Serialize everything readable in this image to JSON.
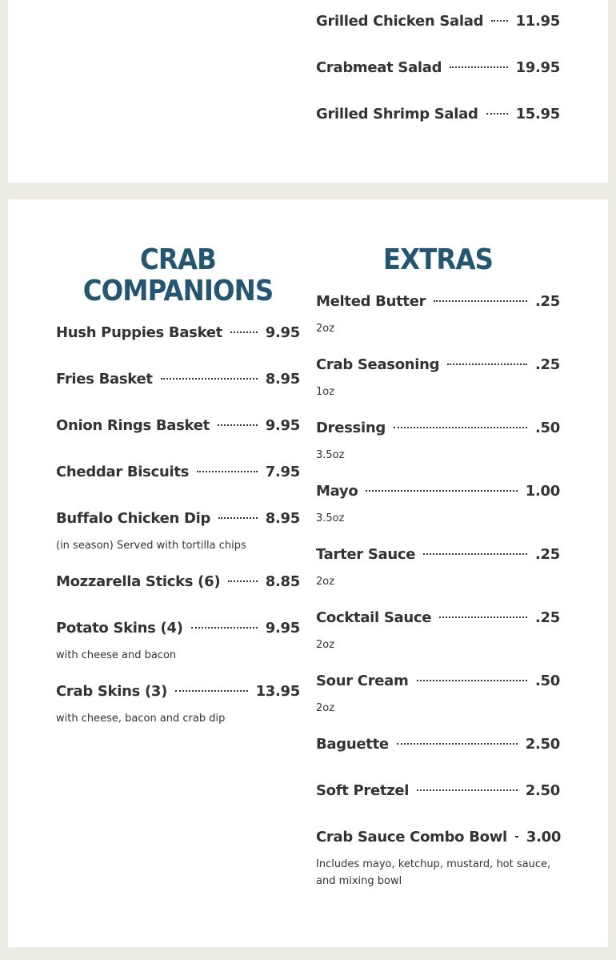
{
  "top_section": {
    "items": [
      {
        "name": "Grilled Chicken Salad",
        "price": "11.95"
      },
      {
        "name": "Crabmeat Salad",
        "price": "19.95"
      },
      {
        "name": "Grilled Shrimp Salad",
        "price": "15.95"
      }
    ]
  },
  "sections": [
    {
      "title": [
        "CRAB",
        "COMPANIONS"
      ],
      "items": [
        {
          "name": "Hush Puppies Basket",
          "price": "9.95"
        },
        {
          "name": "Fries Basket",
          "price": "8.95"
        },
        {
          "name": "Onion Rings Basket",
          "price": "9.95"
        },
        {
          "name": "Cheddar Biscuits",
          "price": "7.95"
        },
        {
          "name": "Buffalo Chicken Dip",
          "price": "8.95",
          "description": "(in season) Served with tortilla chips"
        },
        {
          "name": "Mozzarella Sticks (6)",
          "price": "8.85"
        },
        {
          "name": "Potato Skins (4)",
          "price": "9.95",
          "description": "with cheese and bacon"
        },
        {
          "name": "Crab Skins (3)",
          "price": "13.95",
          "description": "with cheese, bacon and crab dip"
        }
      ]
    },
    {
      "title": [
        "EXTRAS"
      ],
      "items": [
        {
          "name": "Melted Butter",
          "price": ".25",
          "description": "2oz"
        },
        {
          "name": "Crab Seasoning",
          "price": ".25",
          "description": "1oz"
        },
        {
          "name": "Dressing",
          "price": ".50",
          "description": "3.5oz"
        },
        {
          "name": "Mayo",
          "price": "1.00",
          "description": "3.5oz"
        },
        {
          "name": "Tarter Sauce",
          "price": ".25",
          "description": "2oz"
        },
        {
          "name": "Cocktail Sauce",
          "price": ".25",
          "description": "2oz"
        },
        {
          "name": "Sour Cream",
          "price": ".50",
          "description": "2oz"
        },
        {
          "name": "Baguette",
          "price": "2.50"
        },
        {
          "name": "Soft Pretzel",
          "price": "2.50"
        },
        {
          "name": "Crab Sauce Combo Bowl",
          "price": "3.00",
          "description": "Includes mayo, ketchup, mustard, hot sauce, and mixing bowl"
        }
      ]
    }
  ]
}
